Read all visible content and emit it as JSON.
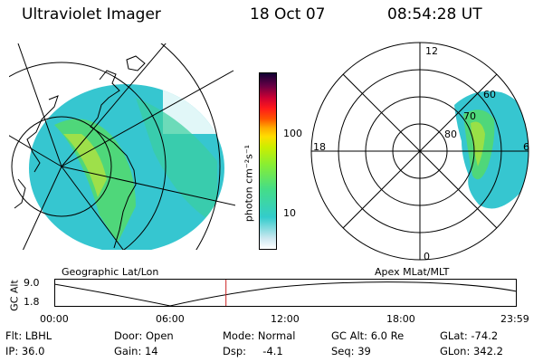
{
  "header": {
    "instrument": "Ultraviolet Imager",
    "date": "18 Oct 07",
    "time": "08:54:28 UT"
  },
  "left_panel": {
    "caption": "Geographic Lat/Lon"
  },
  "right_panel": {
    "caption": "Apex MLat/MLT",
    "mlt_labels": {
      "top": "12",
      "left": "18",
      "right": "6",
      "bottom": "0"
    },
    "lat_labels": [
      "60",
      "70",
      "80"
    ]
  },
  "colorbar": {
    "label": "photon cm⁻²s⁻¹",
    "ticks": [
      "100",
      "10"
    ],
    "scale": "log",
    "colors": [
      "#ffffff",
      "#33cccc",
      "#66ee44",
      "#ccee00",
      "#ffaa00",
      "#ff2200",
      "#cc0033",
      "#660044",
      "#110033"
    ]
  },
  "timeline": {
    "axis_label": "GC Alt",
    "y_ticks": [
      "9.0",
      "1.8"
    ],
    "x_ticks": [
      "00:00",
      "06:00",
      "12:00",
      "18:00",
      "23:59"
    ],
    "marker_time": "08:54:28",
    "marker_color": "#cc2222"
  },
  "footer": {
    "flt": "Flt: LBHL",
    "ip": "IP: 36.0",
    "door": "Door: Open",
    "gain": "Gain: 14",
    "mode": "Mode: Normal",
    "dsp": "Dsp:     -4.1",
    "gcalt": "GC Alt: 6.0 Re",
    "seq": "Seq: 39",
    "glat": "GLat: -74.2",
    "glon": "GLon: 342.2"
  }
}
